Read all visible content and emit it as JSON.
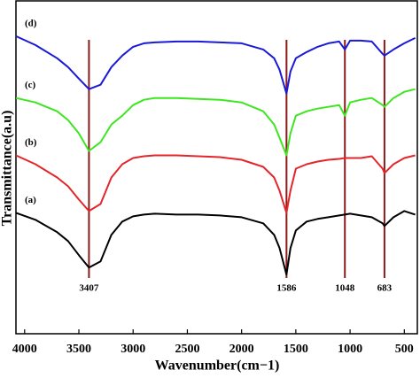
{
  "chart_data": {
    "type": "line",
    "x_label": "Wavenumber(cm−1)",
    "y_label": "Transmittance(a.u)",
    "xlim": [
      4080,
      380
    ],
    "ylim": [
      0,
      377
    ],
    "xticks": [
      4000,
      3500,
      3000,
      2500,
      2000,
      1500,
      1000,
      500
    ],
    "x": [
      4080,
      3900,
      3700,
      3600,
      3500,
      3407,
      3300,
      3200,
      3100,
      3000,
      2900,
      2800,
      2600,
      2400,
      2200,
      2000,
      1800,
      1700,
      1650,
      1586,
      1550,
      1500,
      1400,
      1300,
      1200,
      1100,
      1048,
      1000,
      900,
      800,
      700,
      683,
      600,
      500,
      400
    ],
    "series": [
      {
        "name": "(a)",
        "color": "#000000",
        "values": [
          137,
          129,
          115,
          105,
          89,
          75,
          82,
          112,
          127,
          133,
          135,
          136,
          135,
          135,
          134,
          132,
          125,
          112,
          97,
          67,
          97,
          117,
          127,
          130,
          132,
          134,
          135,
          136,
          134,
          132,
          125,
          122,
          132,
          139,
          135
        ]
      },
      {
        "name": "(b)",
        "color": "#e3262a",
        "values": [
          202,
          192,
          177,
          167,
          152,
          139,
          147,
          177,
          192,
          199,
          201,
          202,
          202,
          201,
          200,
          197,
          189,
          177,
          162,
          137,
          162,
          187,
          192,
          195,
          197,
          198,
          199,
          199,
          199,
          201,
          187,
          182,
          192,
          199,
          202
        ]
      },
      {
        "name": "(c)",
        "color": "#3ee620",
        "values": [
          267,
          262,
          252,
          242,
          227,
          207,
          217,
          237,
          247,
          259,
          265,
          267,
          267,
          266,
          265,
          262,
          252,
          237,
          222,
          202,
          227,
          247,
          252,
          255,
          257,
          259,
          247,
          262,
          265,
          267,
          259,
          257,
          267,
          274,
          277
        ]
      },
      {
        "name": "(d)",
        "color": "#1a1ad6",
        "values": [
          337,
          327,
          312,
          302,
          289,
          277,
          282,
          302,
          315,
          325,
          329,
          330,
          331,
          331,
          330,
          329,
          322,
          312,
          299,
          272,
          297,
          312,
          319,
          325,
          329,
          331,
          322,
          332,
          332,
          331,
          317,
          315,
          322,
          329,
          335
        ]
      }
    ],
    "annotations": [
      {
        "label": "3407",
        "x": 3407
      },
      {
        "label": "1586",
        "x": 1586
      },
      {
        "label": "1048",
        "x": 1048
      },
      {
        "label": "683",
        "x": 683
      }
    ]
  }
}
